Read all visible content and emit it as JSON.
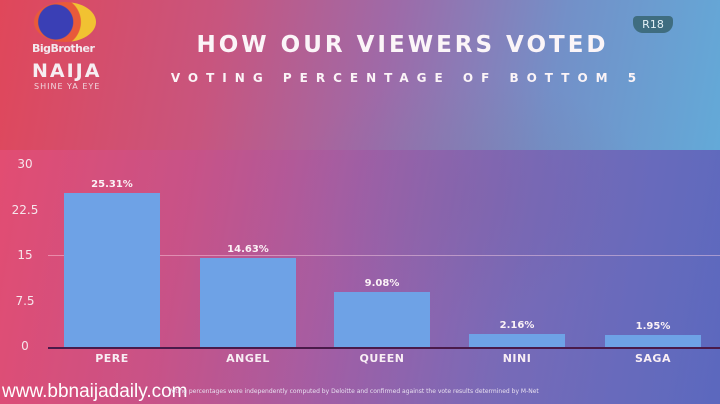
{
  "logo": {
    "line1": "BigBrother",
    "line2": "NAIJA",
    "line3": "NAIJA",
    "line4": "SHINE YA EYE"
  },
  "badge": "R18",
  "chart_data": {
    "type": "bar",
    "title": "HOW OUR VIEWERS VOTED",
    "subtitle": "VOTING PERCENTAGE OF BOTTOM 5",
    "categories": [
      "PERE",
      "ANGEL",
      "QUEEN",
      "NINI",
      "SAGA"
    ],
    "values": [
      25.31,
      14.63,
      9.08,
      2.16,
      1.95
    ],
    "value_labels": [
      "25.31%",
      "14.63%",
      "9.08%",
      "2.16%",
      "1.95%"
    ],
    "yticks": [
      "30",
      "22.5",
      "15",
      "7.5",
      "0"
    ],
    "ylim": [
      0,
      30
    ],
    "xlabel": "",
    "ylabel": "",
    "grid": "single line at 15",
    "bar_color": "#6ea2e6",
    "legend": "none"
  },
  "footnote": "Voting percentages were independently computed by Deloitte and confirmed against the vote results determined by M-Net",
  "watermark": "www.bbnaijadaily.com"
}
